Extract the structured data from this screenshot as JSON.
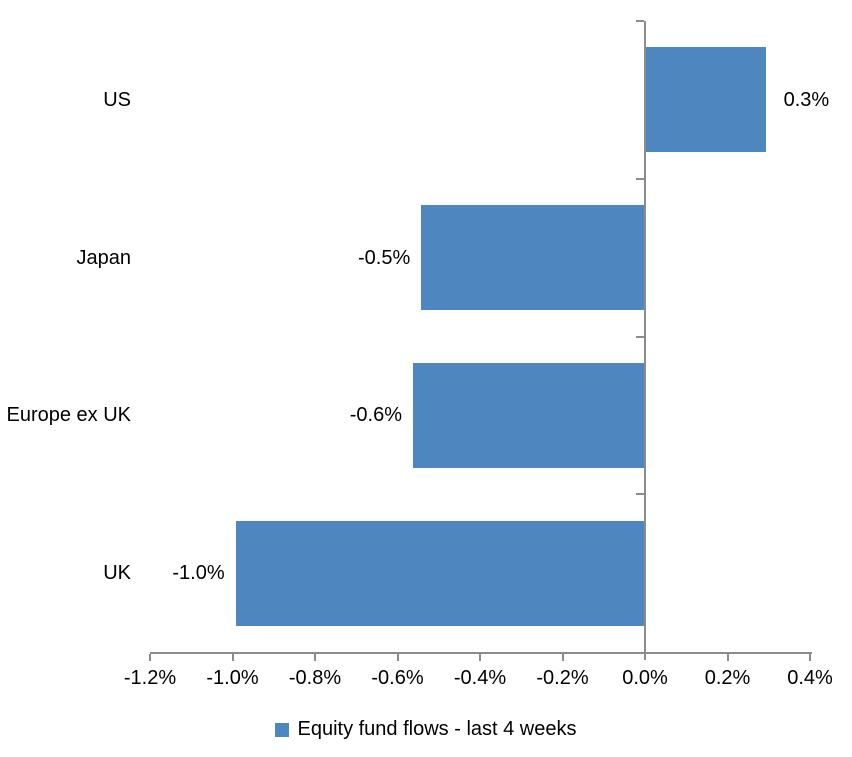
{
  "chart_data": {
    "type": "bar",
    "orientation": "horizontal",
    "title": "",
    "categories": [
      "US",
      "Japan",
      "Europe ex UK",
      "UK"
    ],
    "values": [
      0.3,
      -0.5,
      -0.6,
      -1.0
    ],
    "value_labels": [
      "0.3%",
      "-0.5%",
      "-0.6%",
      "-1.0%"
    ],
    "bar_extent_estimates": [
      0.29,
      -0.54,
      -0.56,
      -0.99
    ],
    "x_tick_values": [
      -1.2,
      -1.0,
      -0.8,
      -0.6,
      -0.4,
      -0.2,
      0.0,
      0.2,
      0.4
    ],
    "x_tick_labels": [
      "-1.2%",
      "-1.0%",
      "-0.8%",
      "-0.6%",
      "-0.4%",
      "-0.2%",
      "0.0%",
      "0.2%",
      "0.4%"
    ],
    "xlim": [
      -1.2,
      0.4
    ],
    "xlabel": "",
    "ylabel": "",
    "grid": false,
    "legend": "Equity fund flows - last 4 weeks",
    "legend_position": "bottom",
    "colors": {
      "bar": "#4E86BF",
      "axis": "#8C8C8C",
      "text": "#000000",
      "background": "#FFFFFF"
    }
  }
}
